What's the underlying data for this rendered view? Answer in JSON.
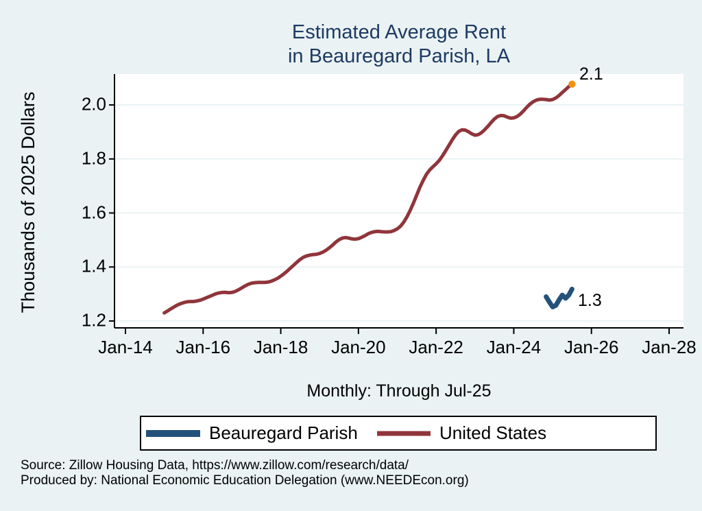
{
  "title": {
    "line1": "Estimated Average Rent",
    "line2": "in Beauregard Parish, LA"
  },
  "axes": {
    "y_title": "Thousands of 2025 Dollars",
    "x_caption": "Monthly: Through Jul-25"
  },
  "annotations": {
    "us_end_label": "2.1",
    "parish_end_label": "1.3"
  },
  "legend": {
    "items": [
      {
        "label": "Beauregard Parish",
        "color": "#24517A"
      },
      {
        "label": "United States",
        "color": "#90353B"
      }
    ]
  },
  "footer": {
    "source_line": "Source: Zillow Housing Data, https://www.zillow.com/research/data/",
    "produced_line": "Produced by: National Economic Education Delegation (www.NEEDEcon.org)"
  },
  "colors": {
    "page_background": "#EAF2F3",
    "plot_background": "#FFFFFF",
    "gridline": "#E4EEF0",
    "axis_line": "#000000",
    "title_text": "#1D3A63",
    "parish_line": "#24517A",
    "us_line": "#90353B",
    "end_marker": "#F09312"
  },
  "chart_data": {
    "type": "line",
    "title": "Estimated Average Rent in Beauregard Parish, LA",
    "xlabel": "Monthly: Through Jul-25",
    "ylabel": "Thousands of 2025 Dollars",
    "frequency": "monthly",
    "x_unit": "decimal_year",
    "xlim": [
      2013.72,
      2028.37
    ],
    "ylim": [
      1.19,
      2.115
    ],
    "grid": "horizontal",
    "legend_position": "bottom",
    "x_ticks": [
      {
        "x": 2014,
        "label": "Jan-14"
      },
      {
        "x": 2016,
        "label": "Jan-16"
      },
      {
        "x": 2018,
        "label": "Jan-18"
      },
      {
        "x": 2020,
        "label": "Jan-20"
      },
      {
        "x": 2022,
        "label": "Jan-22"
      },
      {
        "x": 2024,
        "label": "Jan-24"
      },
      {
        "x": 2026,
        "label": "Jan-26"
      },
      {
        "x": 2028,
        "label": "Jan-28"
      }
    ],
    "y_ticks": [
      {
        "y": 1.2,
        "label": "1.2"
      },
      {
        "y": 1.4,
        "label": "1.4"
      },
      {
        "y": 1.6,
        "label": "1.6"
      },
      {
        "y": 1.8,
        "label": "1.8"
      },
      {
        "y": 2.0,
        "label": "2.0"
      }
    ],
    "series": [
      {
        "name": "United States",
        "color": "#90353B",
        "line_width": 5,
        "start_year": 2015.0,
        "step_years": 0.0833333,
        "end_label": "2.1",
        "end_marker_color": "#F09312",
        "values": [
          1.23,
          1.237,
          1.245,
          1.252,
          1.259,
          1.264,
          1.268,
          1.271,
          1.272,
          1.272,
          1.274,
          1.277,
          1.281,
          1.286,
          1.291,
          1.296,
          1.301,
          1.304,
          1.306,
          1.306,
          1.305,
          1.306,
          1.31,
          1.316,
          1.323,
          1.33,
          1.336,
          1.34,
          1.342,
          1.343,
          1.343,
          1.343,
          1.344,
          1.347,
          1.352,
          1.358,
          1.366,
          1.375,
          1.385,
          1.396,
          1.407,
          1.418,
          1.428,
          1.436,
          1.441,
          1.444,
          1.446,
          1.447,
          1.45,
          1.455,
          1.462,
          1.471,
          1.481,
          1.492,
          1.501,
          1.507,
          1.509,
          1.507,
          1.504,
          1.503,
          1.505,
          1.51,
          1.516,
          1.523,
          1.528,
          1.531,
          1.532,
          1.531,
          1.53,
          1.53,
          1.531,
          1.535,
          1.541,
          1.551,
          1.566,
          1.586,
          1.61,
          1.637,
          1.666,
          1.695,
          1.721,
          1.743,
          1.759,
          1.771,
          1.782,
          1.795,
          1.812,
          1.831,
          1.851,
          1.871,
          1.889,
          1.902,
          1.908,
          1.907,
          1.901,
          1.893,
          1.888,
          1.89,
          1.897,
          1.908,
          1.921,
          1.935,
          1.948,
          1.957,
          1.961,
          1.96,
          1.955,
          1.951,
          1.952,
          1.957,
          1.966,
          1.978,
          1.991,
          2.003,
          2.012,
          2.018,
          2.021,
          2.021,
          2.02,
          2.018,
          2.02,
          2.026,
          2.035,
          2.046,
          2.057,
          2.068,
          2.077
        ]
      },
      {
        "name": "Beauregard Parish",
        "color": "#24517A",
        "line_width": 7,
        "start_year": 2024.8333,
        "step_years": 0.0833333,
        "end_label": "1.3",
        "values": [
          1.29,
          1.27,
          1.252,
          1.258,
          1.278,
          1.296,
          1.284,
          1.296,
          1.318
        ]
      }
    ]
  }
}
